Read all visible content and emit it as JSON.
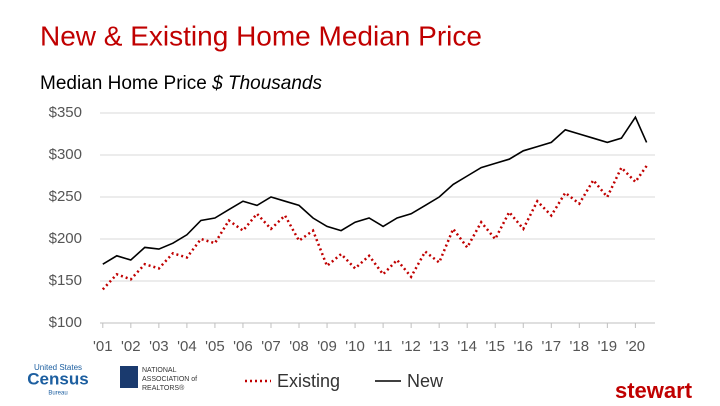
{
  "chart_data": {
    "type": "line",
    "title": "New & Existing Home Median Price",
    "subtitle": "Median Home Price",
    "unit": "$ Thousands",
    "x": [
      2001.0,
      2001.5,
      2002.0,
      2002.5,
      2003.0,
      2003.5,
      2004.0,
      2004.5,
      2005.0,
      2005.5,
      2006.0,
      2006.5,
      2007.0,
      2007.5,
      2008.0,
      2008.5,
      2009.0,
      2009.5,
      2010.0,
      2010.5,
      2011.0,
      2011.5,
      2012.0,
      2012.5,
      2013.0,
      2013.5,
      2014.0,
      2014.5,
      2015.0,
      2015.5,
      2016.0,
      2016.5,
      2017.0,
      2017.5,
      2018.0,
      2018.5,
      2019.0,
      2019.5,
      2020.0,
      2020.4
    ],
    "series": [
      {
        "name": "Existing",
        "color": "#c00000",
        "dash": "dotted",
        "values": [
          140,
          158,
          152,
          170,
          165,
          183,
          178,
          200,
          195,
          222,
          210,
          230,
          212,
          228,
          198,
          210,
          168,
          182,
          165,
          180,
          158,
          175,
          155,
          185,
          172,
          212,
          190,
          220,
          200,
          232,
          212,
          245,
          228,
          255,
          242,
          270,
          250,
          285,
          268,
          287
        ]
      },
      {
        "name": "New",
        "color": "#000000",
        "dash": "solid",
        "values": [
          170,
          180,
          175,
          190,
          188,
          195,
          205,
          222,
          225,
          235,
          245,
          240,
          250,
          245,
          240,
          225,
          215,
          210,
          220,
          225,
          215,
          225,
          230,
          240,
          250,
          265,
          275,
          285,
          290,
          295,
          305,
          310,
          315,
          330,
          325,
          320,
          315,
          320,
          345,
          315
        ]
      }
    ],
    "xlim": [
      2000.9,
      2020.7
    ],
    "xticks": [
      {
        "value": 2001,
        "label": "'01"
      },
      {
        "value": 2002,
        "label": "'02"
      },
      {
        "value": 2003,
        "label": "'03"
      },
      {
        "value": 2004,
        "label": "'04"
      },
      {
        "value": 2005,
        "label": "'05"
      },
      {
        "value": 2006,
        "label": "'06"
      },
      {
        "value": 2007,
        "label": "'07"
      },
      {
        "value": 2008,
        "label": "'08"
      },
      {
        "value": 2009,
        "label": "'09"
      },
      {
        "value": 2010,
        "label": "'10"
      },
      {
        "value": 2011,
        "label": "'11"
      },
      {
        "value": 2012,
        "label": "'12"
      },
      {
        "value": 2013,
        "label": "'13"
      },
      {
        "value": 2014,
        "label": "'14"
      },
      {
        "value": 2015,
        "label": "'15"
      },
      {
        "value": 2016,
        "label": "'16"
      },
      {
        "value": 2017,
        "label": "'17"
      },
      {
        "value": 2018,
        "label": "'18"
      },
      {
        "value": 2019,
        "label": "'19"
      },
      {
        "value": 2020,
        "label": "'20"
      }
    ],
    "ylim": [
      100,
      350
    ],
    "yticks": [
      {
        "value": 100,
        "label": "$100"
      },
      {
        "value": 150,
        "label": "$150"
      },
      {
        "value": 200,
        "label": "$200"
      },
      {
        "value": 250,
        "label": "$250"
      },
      {
        "value": 300,
        "label": "$300"
      },
      {
        "value": 350,
        "label": "$350"
      }
    ],
    "grid": true,
    "logos": [
      "United States",
      "Census",
      "Bureau",
      "NATIONAL",
      "ASSOCIATION of",
      "REALTORS®",
      "stewart"
    ]
  }
}
